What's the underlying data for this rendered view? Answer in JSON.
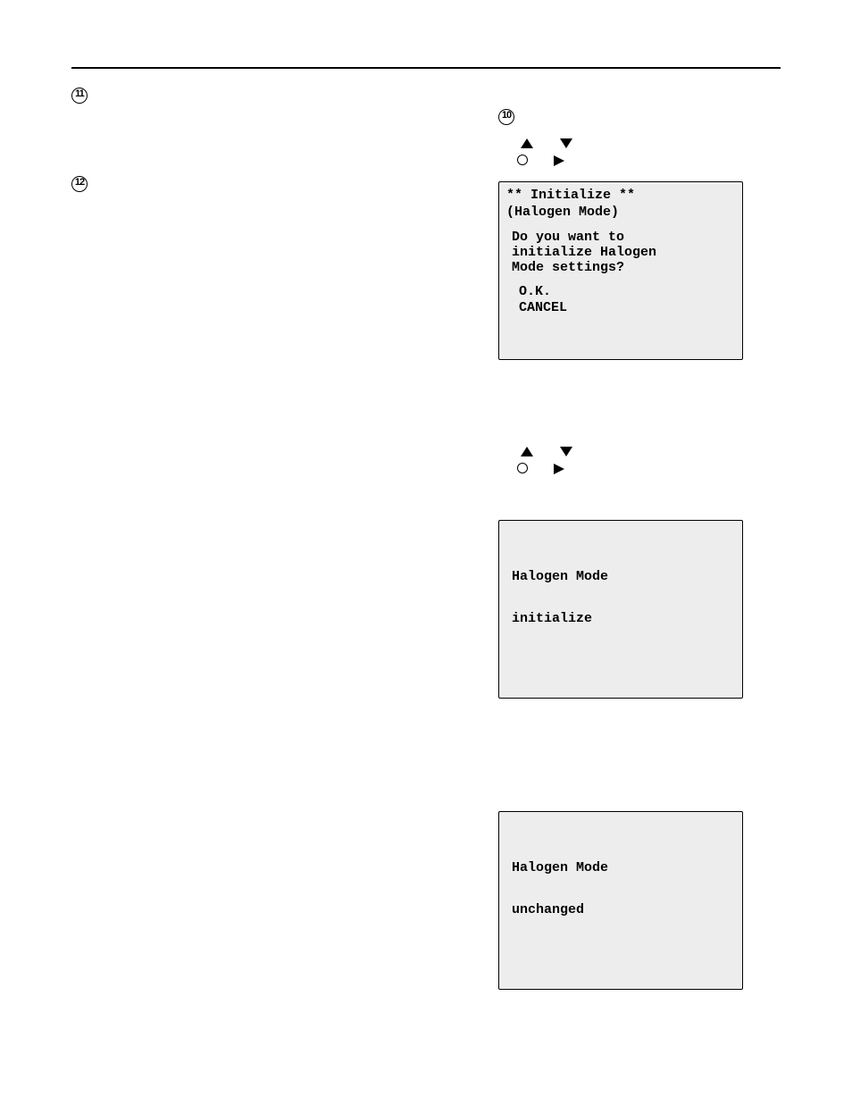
{
  "markers": {
    "m11": "11",
    "m12": "12",
    "m10": "10"
  },
  "screenA": {
    "title": "** Initialize **",
    "sub": "(Halogen Mode)",
    "q1": "Do you want to",
    "q2": "initialize Halogen",
    "q3": "Mode settings?",
    "ok": "O.K.",
    "cancel": "CANCEL"
  },
  "screenB": {
    "l1": "Halogen Mode",
    "l2": "initialize"
  },
  "screenC": {
    "l1": "Halogen Mode",
    "l2": "unchanged"
  }
}
